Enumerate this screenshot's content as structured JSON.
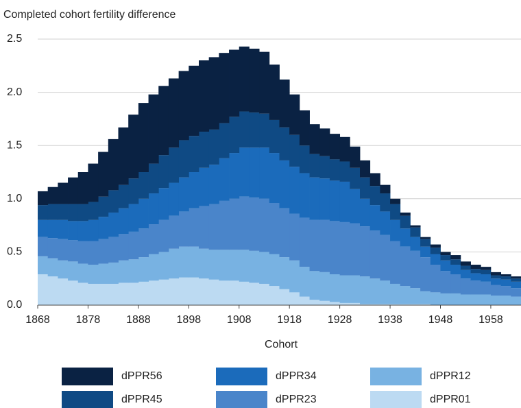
{
  "chart_data": {
    "type": "stacked_bar",
    "y_label": "Completed cohort fertility difference",
    "x_label": "Cohort",
    "x": [
      1868,
      1870,
      1872,
      1874,
      1876,
      1878,
      1880,
      1882,
      1884,
      1886,
      1888,
      1890,
      1892,
      1894,
      1896,
      1898,
      1900,
      1902,
      1904,
      1906,
      1908,
      1910,
      1912,
      1914,
      1916,
      1918,
      1920,
      1922,
      1924,
      1926,
      1928,
      1930,
      1932,
      1934,
      1936,
      1938,
      1940,
      1942,
      1944,
      1946,
      1948,
      1950,
      1952,
      1954,
      1956,
      1958,
      1960,
      1962
    ],
    "x_step": 2,
    "xlim": [
      1868,
      1964
    ],
    "xticks": [
      1868,
      1878,
      1888,
      1898,
      1908,
      1918,
      1928,
      1938,
      1948,
      1958
    ],
    "ylim": [
      0,
      2.5
    ],
    "yticks": [
      {
        "value": 0,
        "label": "0.0"
      },
      0.5,
      {
        "value": 1,
        "label": "1.0"
      },
      1.5,
      {
        "value": 2,
        "label": "2.0"
      },
      2.5
    ],
    "grid": true,
    "series": [
      {
        "name": "dPPR01",
        "color": "#bcdaf2",
        "values": [
          0.29,
          0.27,
          0.25,
          0.23,
          0.21,
          0.2,
          0.2,
          0.2,
          0.21,
          0.21,
          0.22,
          0.23,
          0.24,
          0.25,
          0.26,
          0.26,
          0.25,
          0.24,
          0.23,
          0.23,
          0.22,
          0.21,
          0.2,
          0.18,
          0.15,
          0.12,
          0.08,
          0.05,
          0.04,
          0.03,
          0.02,
          0.02,
          0.01,
          0.01,
          0.01,
          0.01,
          0.01,
          0.01,
          0.01,
          0,
          0,
          0,
          0,
          0,
          0,
          0,
          0,
          0
        ]
      },
      {
        "name": "dPPR12",
        "color": "#78b2e2",
        "values": [
          0.17,
          0.17,
          0.17,
          0.18,
          0.18,
          0.18,
          0.19,
          0.2,
          0.21,
          0.22,
          0.23,
          0.25,
          0.26,
          0.28,
          0.29,
          0.29,
          0.28,
          0.28,
          0.29,
          0.29,
          0.3,
          0.3,
          0.3,
          0.3,
          0.3,
          0.3,
          0.28,
          0.27,
          0.27,
          0.26,
          0.26,
          0.26,
          0.26,
          0.24,
          0.22,
          0.19,
          0.17,
          0.15,
          0.12,
          0.12,
          0.11,
          0.11,
          0.1,
          0.1,
          0.1,
          0.09,
          0.09,
          0.08
        ]
      },
      {
        "name": "dPPR23",
        "color": "#4a85ca",
        "values": [
          0.18,
          0.19,
          0.2,
          0.2,
          0.21,
          0.22,
          0.23,
          0.24,
          0.25,
          0.26,
          0.27,
          0.28,
          0.3,
          0.31,
          0.33,
          0.36,
          0.4,
          0.43,
          0.46,
          0.48,
          0.5,
          0.5,
          0.5,
          0.48,
          0.46,
          0.44,
          0.46,
          0.48,
          0.49,
          0.5,
          0.5,
          0.49,
          0.47,
          0.45,
          0.43,
          0.4,
          0.37,
          0.35,
          0.32,
          0.26,
          0.21,
          0.18,
          0.15,
          0.13,
          0.12,
          0.1,
          0.09,
          0.08
        ]
      },
      {
        "name": "dPPR34",
        "color": "#1b6bbb",
        "values": [
          0.16,
          0.17,
          0.18,
          0.18,
          0.19,
          0.2,
          0.21,
          0.23,
          0.24,
          0.26,
          0.28,
          0.29,
          0.3,
          0.31,
          0.32,
          0.34,
          0.36,
          0.37,
          0.4,
          0.43,
          0.46,
          0.47,
          0.48,
          0.47,
          0.45,
          0.44,
          0.42,
          0.4,
          0.39,
          0.38,
          0.38,
          0.32,
          0.26,
          0.24,
          0.22,
          0.2,
          0.17,
          0.13,
          0.1,
          0.1,
          0.1,
          0.09,
          0.08,
          0.07,
          0.07,
          0.06,
          0.06,
          0.06
        ]
      },
      {
        "name": "dPPR45",
        "color": "#0f4a84",
        "values": [
          0.14,
          0.15,
          0.15,
          0.16,
          0.16,
          0.17,
          0.19,
          0.21,
          0.22,
          0.24,
          0.25,
          0.28,
          0.31,
          0.33,
          0.35,
          0.34,
          0.34,
          0.33,
          0.33,
          0.34,
          0.34,
          0.33,
          0.32,
          0.31,
          0.31,
          0.3,
          0.26,
          0.22,
          0.21,
          0.2,
          0.19,
          0.2,
          0.2,
          0.18,
          0.17,
          0.15,
          0.12,
          0.09,
          0.07,
          0.06,
          0.05,
          0.05,
          0.04,
          0.04,
          0.04,
          0.03,
          0.03,
          0.03
        ]
      },
      {
        "name": "dPPR56",
        "color": "#0a2243",
        "values": [
          0.13,
          0.16,
          0.2,
          0.25,
          0.3,
          0.36,
          0.42,
          0.48,
          0.54,
          0.6,
          0.65,
          0.65,
          0.65,
          0.65,
          0.65,
          0.66,
          0.67,
          0.68,
          0.66,
          0.63,
          0.61,
          0.6,
          0.58,
          0.52,
          0.45,
          0.38,
          0.33,
          0.28,
          0.26,
          0.24,
          0.23,
          0.2,
          0.16,
          0.12,
          0.08,
          0.05,
          0.03,
          0.02,
          0.02,
          0.03,
          0.03,
          0.04,
          0.04,
          0.04,
          0.03,
          0.03,
          0.02,
          0.02
        ]
      }
    ]
  }
}
